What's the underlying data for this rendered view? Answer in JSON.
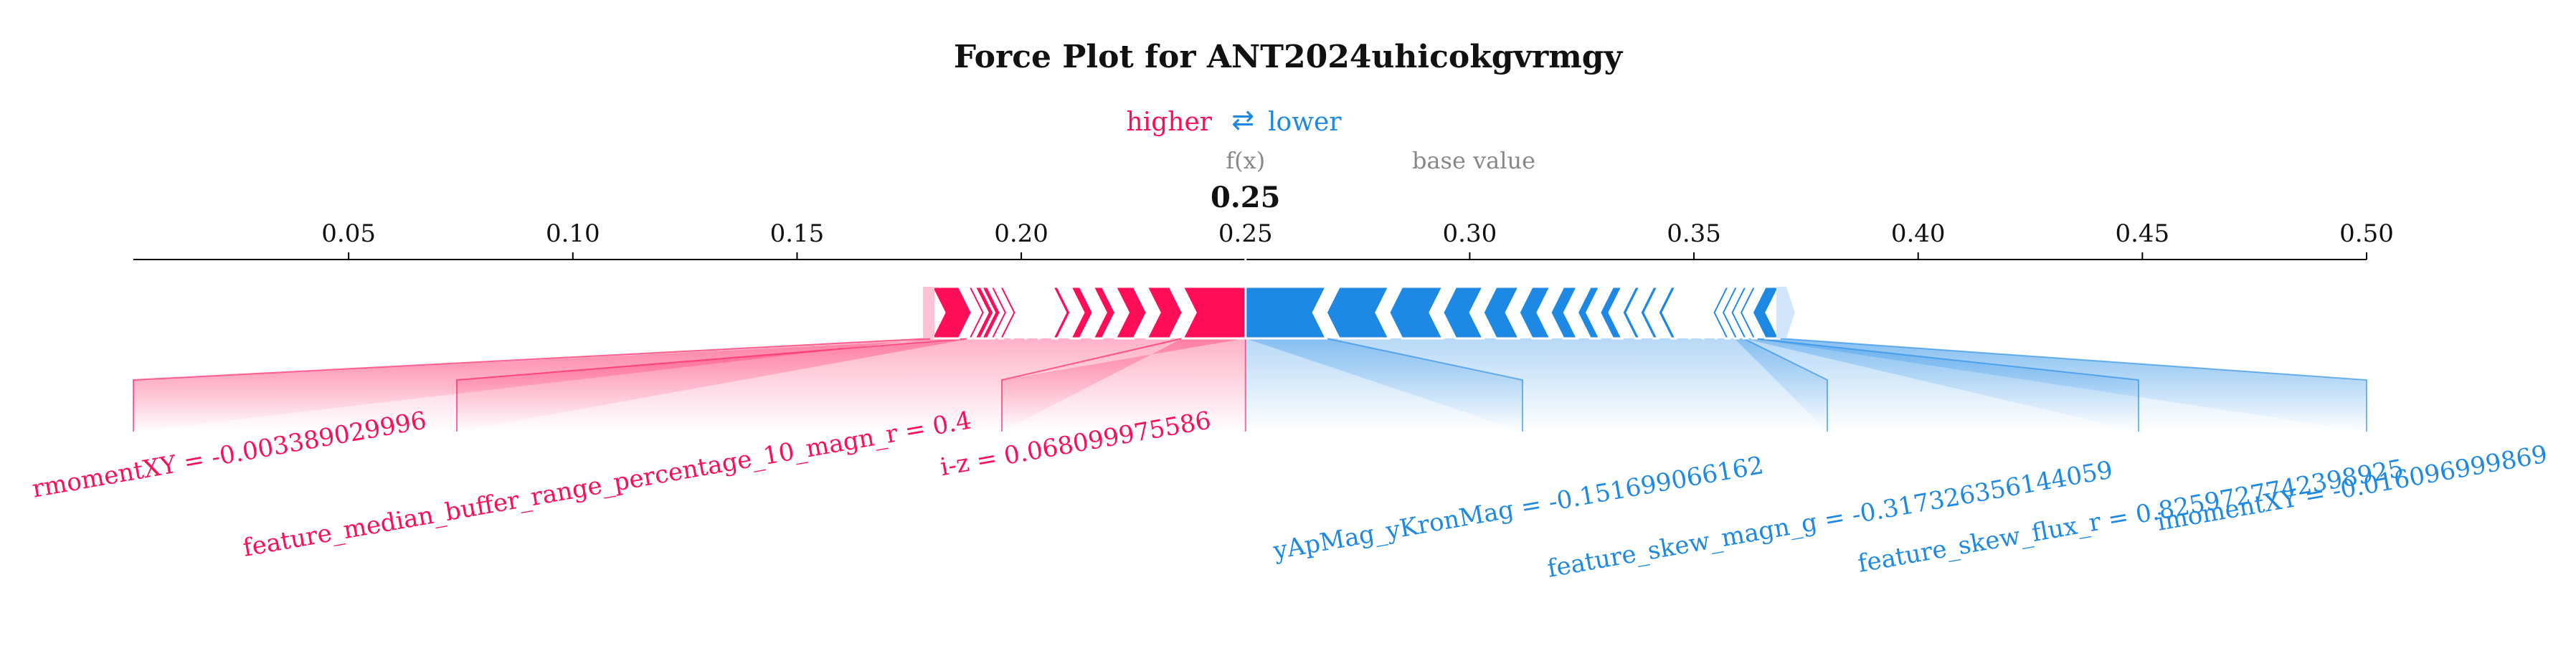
{
  "chart_data": {
    "type": "force",
    "title": "Force Plot for ANT2024uhicokgvrmgy",
    "legend": {
      "higher": "higher",
      "arrow": "⇄",
      "lower": "lower"
    },
    "fx_label": "f(x)",
    "fx_value_label": "0.25",
    "fx_value": 0.25,
    "base_label": "base value",
    "xlim": [
      0.002,
      0.5
    ],
    "ticks": [
      0.05,
      0.1,
      0.15,
      0.2,
      0.25,
      0.3,
      0.35,
      0.4,
      0.45,
      0.5
    ],
    "tick_labels": [
      "0.05",
      "0.10",
      "0.15",
      "0.20",
      "0.25",
      "0.30",
      "0.35",
      "0.40",
      "0.45",
      "0.50"
    ],
    "positive_features": [
      {
        "label": "i-z = 0.068099975586",
        "start": 0.236,
        "end": 0.25,
        "labeled": true
      },
      {
        "label": "",
        "start": 0.228,
        "end": 0.236,
        "labeled": false
      },
      {
        "label": "",
        "start": 0.221,
        "end": 0.228,
        "labeled": false
      },
      {
        "label": "",
        "start": 0.216,
        "end": 0.221,
        "labeled": false
      },
      {
        "label": "",
        "start": 0.211,
        "end": 0.216,
        "labeled": false
      },
      {
        "label": "",
        "start": 0.207,
        "end": 0.211,
        "labeled": false
      },
      {
        "label": "",
        "start": 0.204,
        "end": 0.207,
        "labeled": false
      },
      {
        "label": "",
        "start": 0.201,
        "end": 0.204,
        "labeled": false
      },
      {
        "label": "",
        "start": 0.198,
        "end": 0.201,
        "labeled": false
      },
      {
        "label": "",
        "start": 0.196,
        "end": 0.198,
        "labeled": false
      },
      {
        "label": "",
        "start": 0.194,
        "end": 0.196,
        "labeled": false
      },
      {
        "label": "",
        "start": 0.1925,
        "end": 0.194,
        "labeled": false
      },
      {
        "label": "",
        "start": 0.191,
        "end": 0.1925,
        "labeled": false
      },
      {
        "label": "feature_median_buffer_range_percentage_10_magn_r = 0.4",
        "start": 0.189,
        "end": 0.191,
        "labeled": true
      },
      {
        "label": "rmomentXY = -0.003389029996",
        "start": 0.18,
        "end": 0.189,
        "labeled": true
      }
    ],
    "negative_features": [
      {
        "label": "yApMag_yKronMag = -0.151699066162",
        "start": 0.25,
        "end": 0.268,
        "labeled": true
      },
      {
        "label": "",
        "start": 0.268,
        "end": 0.282,
        "labeled": false
      },
      {
        "label": "",
        "start": 0.282,
        "end": 0.294,
        "labeled": false
      },
      {
        "label": "",
        "start": 0.294,
        "end": 0.303,
        "labeled": false
      },
      {
        "label": "",
        "start": 0.303,
        "end": 0.311,
        "labeled": false
      },
      {
        "label": "",
        "start": 0.311,
        "end": 0.318,
        "labeled": false
      },
      {
        "label": "",
        "start": 0.318,
        "end": 0.324,
        "labeled": false
      },
      {
        "label": "",
        "start": 0.324,
        "end": 0.329,
        "labeled": false
      },
      {
        "label": "",
        "start": 0.329,
        "end": 0.334,
        "labeled": false
      },
      {
        "label": "",
        "start": 0.334,
        "end": 0.338,
        "labeled": false
      },
      {
        "label": "",
        "start": 0.338,
        "end": 0.342,
        "labeled": false
      },
      {
        "label": "",
        "start": 0.342,
        "end": 0.346,
        "labeled": false
      },
      {
        "label": "",
        "start": 0.346,
        "end": 0.349,
        "labeled": false
      },
      {
        "label": "",
        "start": 0.349,
        "end": 0.352,
        "labeled": false
      },
      {
        "label": "",
        "start": 0.352,
        "end": 0.355,
        "labeled": false
      },
      {
        "label": "",
        "start": 0.355,
        "end": 0.357,
        "labeled": false
      },
      {
        "label": "",
        "start": 0.357,
        "end": 0.359,
        "labeled": false
      },
      {
        "label": "feature_skew_magn_g = -0.317326356144059",
        "start": 0.359,
        "end": 0.361,
        "labeled": true
      },
      {
        "label": "feature_skew_flux_r = 0.8259727742398925",
        "start": 0.361,
        "end": 0.363,
        "labeled": true
      },
      {
        "label": "imomentXY = -0.016096999869",
        "start": 0.363,
        "end": 0.369,
        "labeled": true
      }
    ],
    "colors": {
      "positive": "#ff0d57",
      "negative": "#1e88e5",
      "positive_light": "#ffc3d5",
      "negative_light": "#d1e6fa",
      "axis": "#000000",
      "muted": "#888888"
    }
  }
}
